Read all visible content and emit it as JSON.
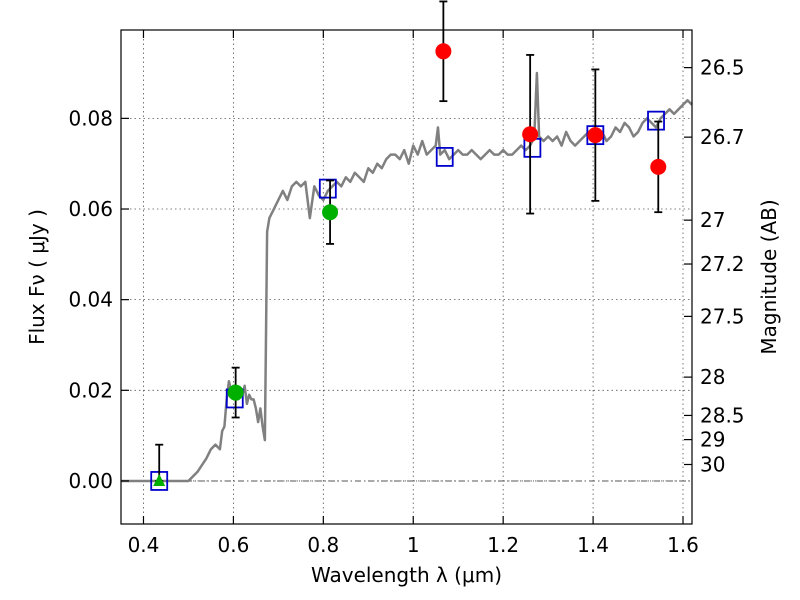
{
  "chart_data": {
    "type": "scatter",
    "xlabel": "Wavelength  λ (μm)",
    "ylabel": "Flux  Fν  ( μJy )",
    "y2label": "Magnitude (AB)",
    "xlim": [
      0.35,
      1.62
    ],
    "ylim": [
      -0.0095,
      0.0995
    ],
    "x_ticks": [
      {
        "value": 0.4,
        "label": "0.4"
      },
      {
        "value": 0.6,
        "label": "0.6"
      },
      {
        "value": 0.8,
        "label": "0.8"
      },
      {
        "value": 1.0,
        "label": "1"
      },
      {
        "value": 1.2,
        "label": "1.2"
      },
      {
        "value": 1.4,
        "label": "1.4"
      },
      {
        "value": 1.6,
        "label": "1.6"
      }
    ],
    "y_ticks": [
      {
        "value": 0.0,
        "label": "0.00"
      },
      {
        "value": 0.02,
        "label": "0.02"
      },
      {
        "value": 0.04,
        "label": "0.04"
      },
      {
        "value": 0.06,
        "label": "0.06"
      },
      {
        "value": 0.08,
        "label": "0.08"
      }
    ],
    "mag_ticks": [
      {
        "mag": 26.5,
        "label": "26.5"
      },
      {
        "mag": 26.7,
        "label": "26.7"
      },
      {
        "mag": 27.0,
        "label": "27"
      },
      {
        "mag": 27.2,
        "label": "27.2"
      },
      {
        "mag": 27.5,
        "label": "27.5"
      },
      {
        "mag": 28.0,
        "label": "28"
      },
      {
        "mag": 28.5,
        "label": "28.5"
      },
      {
        "mag": 29.0,
        "label": "29"
      },
      {
        "mag": 30.0,
        "label": "30"
      }
    ],
    "colors": {
      "model": "#808080",
      "model_points": "#0000cc",
      "green": "#00b000",
      "red": "#ff0000",
      "errorbar": "#000000",
      "zero_line": "#555555"
    },
    "model_spectrum": {
      "x": [
        0.35,
        0.4,
        0.45,
        0.48,
        0.5,
        0.52,
        0.54,
        0.55,
        0.56,
        0.57,
        0.575,
        0.58,
        0.585,
        0.59,
        0.595,
        0.6,
        0.605,
        0.61,
        0.62,
        0.625,
        0.63,
        0.635,
        0.64,
        0.645,
        0.65,
        0.655,
        0.66,
        0.665,
        0.67,
        0.675,
        0.68,
        0.69,
        0.7,
        0.71,
        0.72,
        0.73,
        0.74,
        0.75,
        0.76,
        0.77,
        0.78,
        0.79,
        0.8,
        0.81,
        0.82,
        0.83,
        0.84,
        0.85,
        0.86,
        0.87,
        0.88,
        0.89,
        0.9,
        0.91,
        0.92,
        0.93,
        0.94,
        0.95,
        0.96,
        0.97,
        0.98,
        0.99,
        1.0,
        1.01,
        1.02,
        1.03,
        1.04,
        1.05,
        1.055,
        1.06,
        1.07,
        1.08,
        1.09,
        1.1,
        1.11,
        1.12,
        1.13,
        1.14,
        1.15,
        1.16,
        1.17,
        1.18,
        1.19,
        1.2,
        1.21,
        1.22,
        1.23,
        1.24,
        1.25,
        1.26,
        1.265,
        1.27,
        1.275,
        1.28,
        1.29,
        1.3,
        1.31,
        1.32,
        1.33,
        1.34,
        1.35,
        1.36,
        1.37,
        1.38,
        1.39,
        1.4,
        1.41,
        1.42,
        1.43,
        1.44,
        1.45,
        1.46,
        1.47,
        1.48,
        1.49,
        1.5,
        1.51,
        1.52,
        1.53,
        1.54,
        1.55,
        1.56,
        1.57,
        1.58,
        1.59,
        1.6,
        1.61,
        1.62
      ],
      "y": [
        0.0,
        0.0,
        0.0,
        0.0,
        0.0,
        0.002,
        0.005,
        0.007,
        0.008,
        0.007,
        0.011,
        0.012,
        0.018,
        0.022,
        0.02,
        0.021,
        0.021,
        0.018,
        0.019,
        0.021,
        0.017,
        0.019,
        0.018,
        0.018,
        0.016,
        0.013,
        0.016,
        0.012,
        0.009,
        0.055,
        0.058,
        0.06,
        0.062,
        0.064,
        0.062,
        0.065,
        0.066,
        0.065,
        0.066,
        0.058,
        0.065,
        0.063,
        0.062,
        0.064,
        0.065,
        0.066,
        0.065,
        0.067,
        0.066,
        0.068,
        0.067,
        0.066,
        0.069,
        0.068,
        0.07,
        0.069,
        0.071,
        0.072,
        0.072,
        0.071,
        0.073,
        0.07,
        0.074,
        0.072,
        0.075,
        0.072,
        0.073,
        0.074,
        0.078,
        0.072,
        0.073,
        0.071,
        0.072,
        0.073,
        0.072,
        0.072,
        0.073,
        0.072,
        0.071,
        0.072,
        0.073,
        0.072,
        0.072,
        0.073,
        0.072,
        0.072,
        0.073,
        0.074,
        0.073,
        0.074,
        0.075,
        0.078,
        0.09,
        0.076,
        0.075,
        0.076,
        0.075,
        0.076,
        0.074,
        0.077,
        0.075,
        0.074,
        0.075,
        0.076,
        0.077,
        0.075,
        0.076,
        0.077,
        0.075,
        0.076,
        0.078,
        0.077,
        0.079,
        0.078,
        0.076,
        0.077,
        0.079,
        0.08,
        0.079,
        0.078,
        0.08,
        0.081,
        0.082,
        0.081,
        0.082,
        0.083,
        0.084,
        0.083
      ]
    },
    "model_points": [
      {
        "x": 0.435,
        "y": 0.0
      },
      {
        "x": 0.603,
        "y": 0.0182
      },
      {
        "x": 0.81,
        "y": 0.0645
      },
      {
        "x": 1.07,
        "y": 0.0715
      },
      {
        "x": 1.265,
        "y": 0.0735
      },
      {
        "x": 1.405,
        "y": 0.0763
      },
      {
        "x": 1.54,
        "y": 0.0795
      }
    ],
    "observations": [
      {
        "x": 0.435,
        "y": 0.0,
        "err_low": 0.0,
        "err_high": 0.008,
        "color": "green",
        "marker": "triangle"
      },
      {
        "x": 0.605,
        "y": 0.0195,
        "err_low": 0.0055,
        "err_high": 0.0055,
        "color": "green",
        "marker": "circle"
      },
      {
        "x": 0.815,
        "y": 0.0593,
        "err_low": 0.007,
        "err_high": 0.007,
        "color": "green",
        "marker": "circle"
      },
      {
        "x": 1.067,
        "y": 0.0948,
        "err_low": 0.011,
        "err_high": 0.011,
        "color": "red",
        "marker": "circle"
      },
      {
        "x": 1.26,
        "y": 0.0765,
        "err_low": 0.0175,
        "err_high": 0.0175,
        "color": "red",
        "marker": "circle"
      },
      {
        "x": 1.405,
        "y": 0.0763,
        "err_low": 0.0145,
        "err_high": 0.0145,
        "color": "red",
        "marker": "circle"
      },
      {
        "x": 1.545,
        "y": 0.0693,
        "err_low": 0.01,
        "err_high": 0.01,
        "color": "red",
        "marker": "circle"
      }
    ]
  }
}
